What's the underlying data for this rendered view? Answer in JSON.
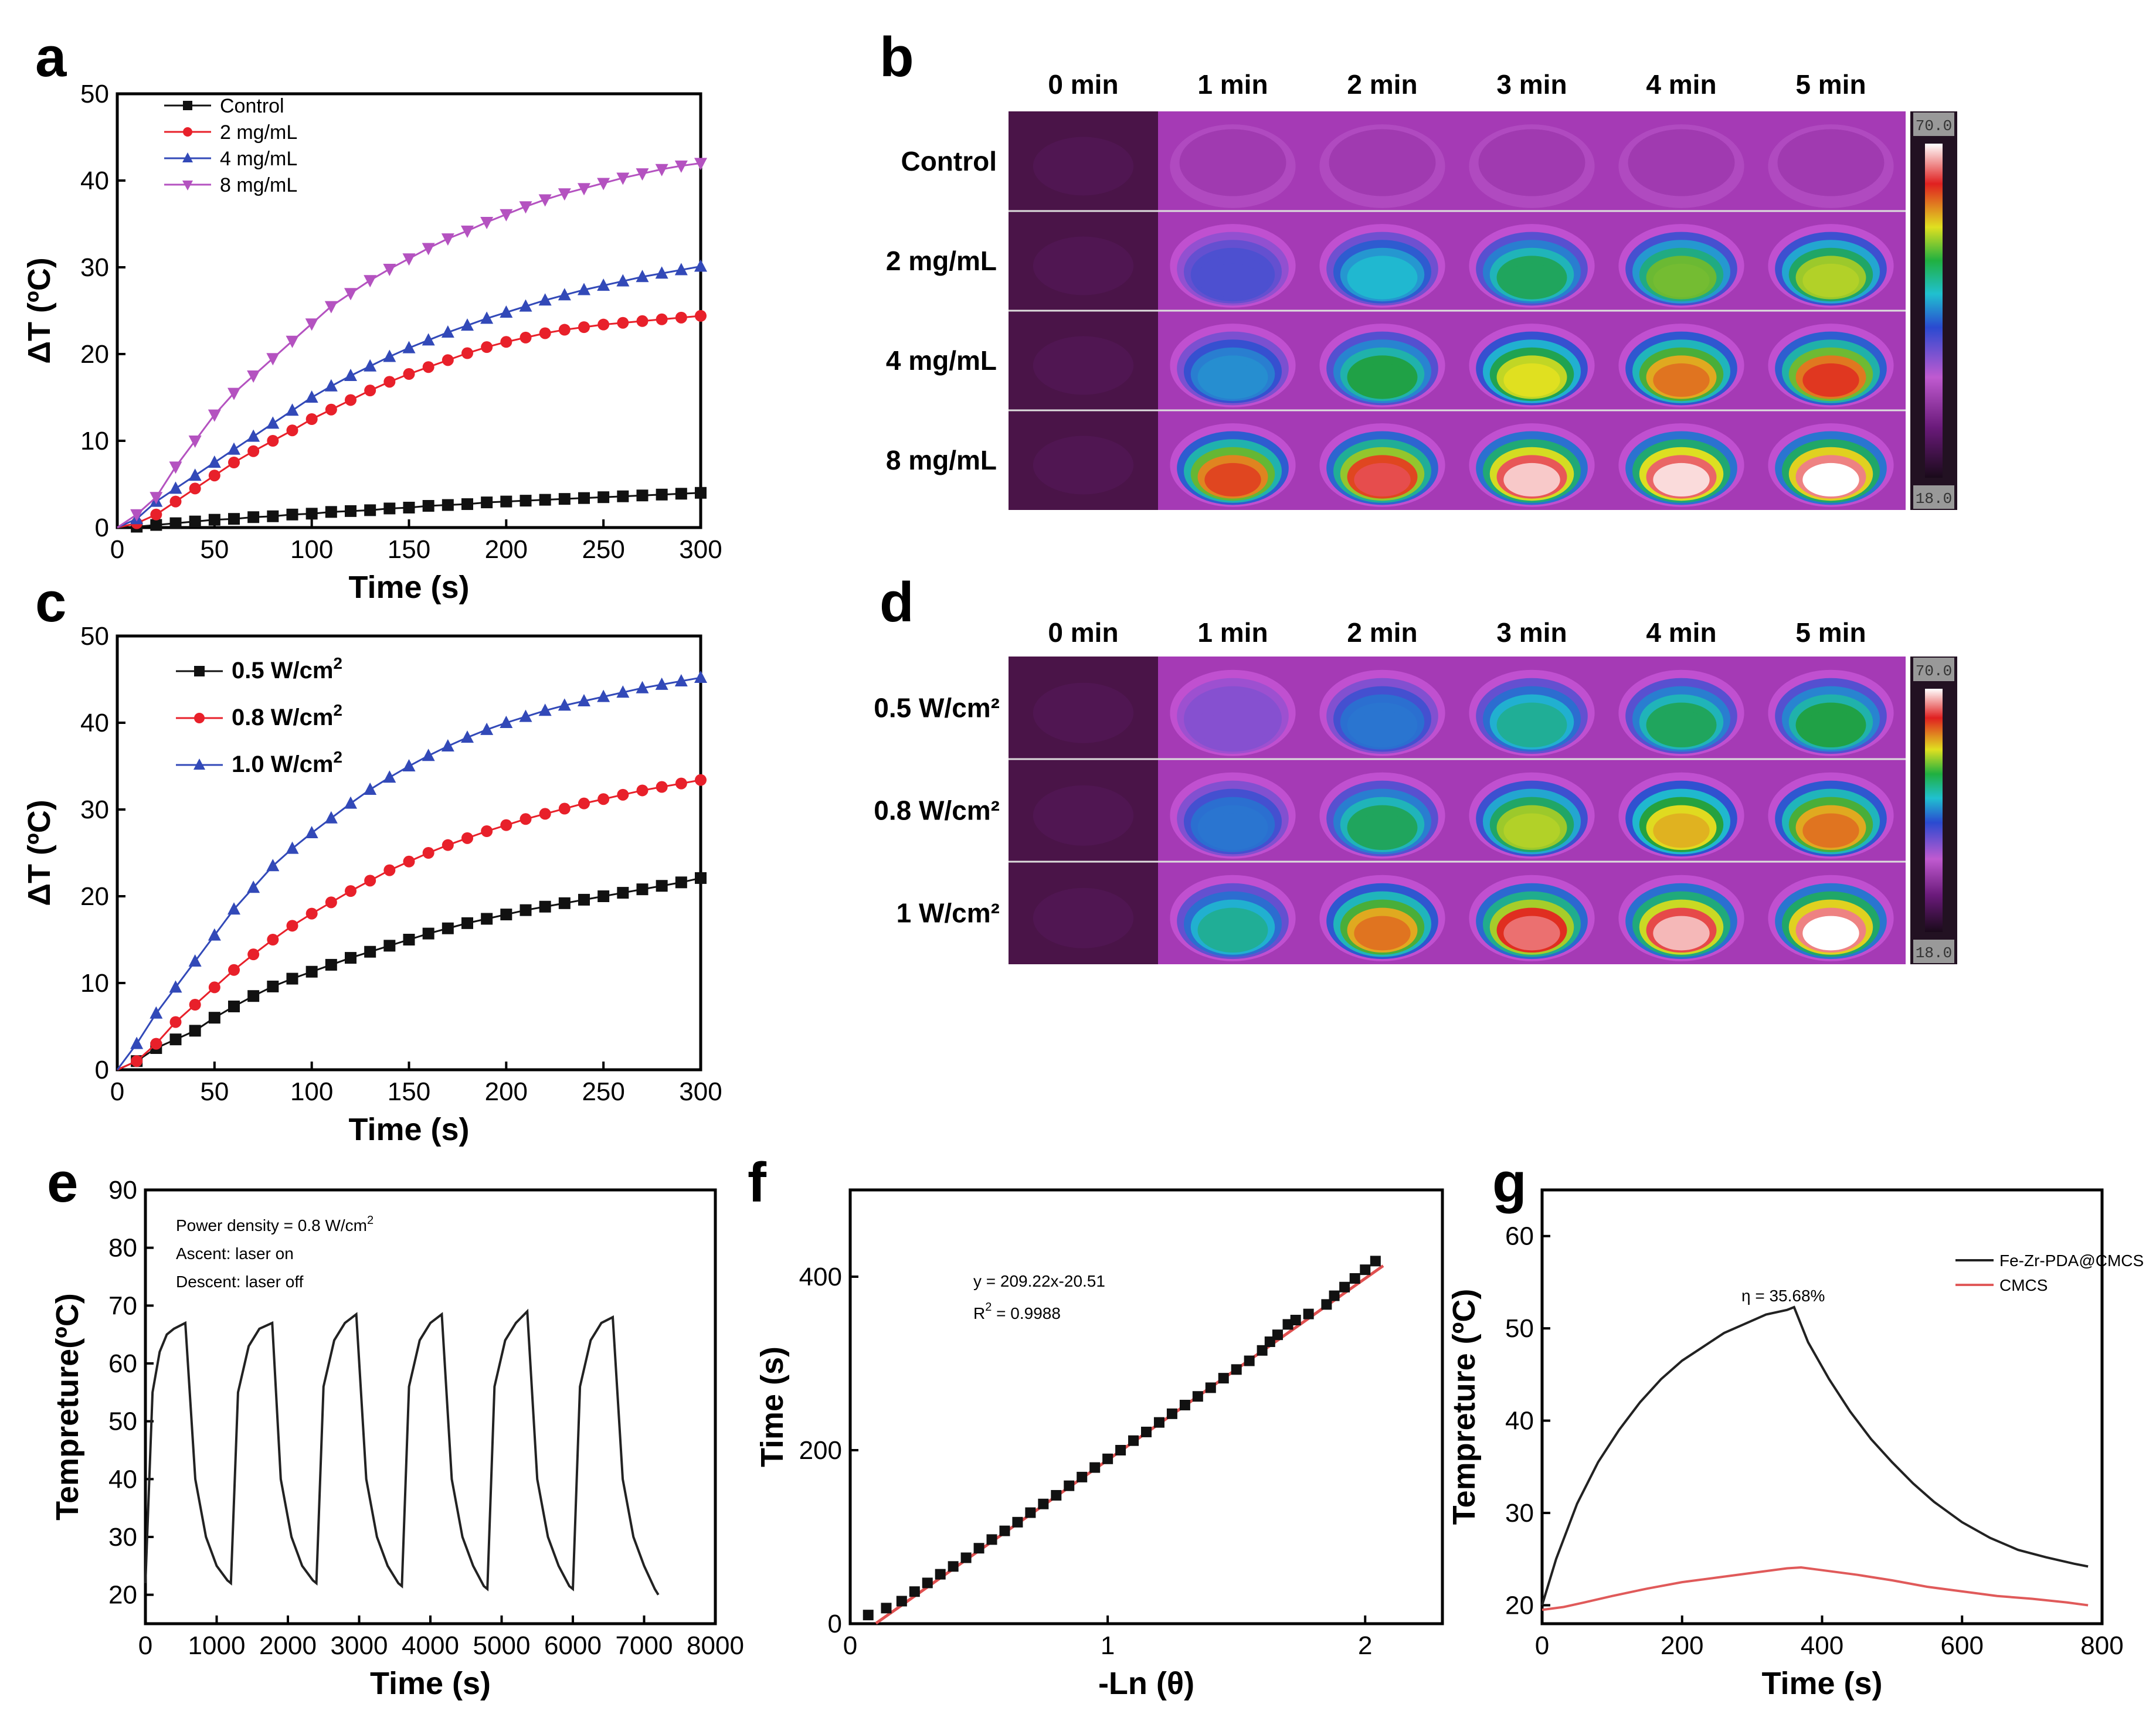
{
  "colors": {
    "black": "#111111",
    "red": "#e8202a",
    "blue": "#3249b8",
    "magenta": "#b452c0",
    "fitRed": "#e05050",
    "g_red": "#e05a5a"
  },
  "chart_data": [
    {
      "id": "a",
      "type": "line",
      "panel_label": "a",
      "xlabel": "Time (s)",
      "ylabel": "ΔT (ºC)",
      "xlim": [
        0,
        300
      ],
      "ylim": [
        0,
        50
      ],
      "xticks": [
        0,
        50,
        100,
        150,
        200,
        250,
        300
      ],
      "yticks": [
        0,
        10,
        20,
        30,
        40,
        50
      ],
      "series": [
        {
          "name": "Control",
          "color": "#111111",
          "marker": "square",
          "x": [
            0,
            10,
            20,
            30,
            40,
            50,
            60,
            70,
            80,
            90,
            100,
            110,
            120,
            130,
            140,
            150,
            160,
            170,
            180,
            190,
            200,
            210,
            220,
            230,
            240,
            250,
            260,
            270,
            280,
            290,
            300
          ],
          "values": [
            0,
            0.1,
            0.3,
            0.5,
            0.7,
            0.9,
            1.0,
            1.2,
            1.3,
            1.5,
            1.6,
            1.8,
            1.9,
            2.0,
            2.2,
            2.3,
            2.5,
            2.6,
            2.7,
            2.9,
            3.0,
            3.1,
            3.2,
            3.3,
            3.4,
            3.5,
            3.6,
            3.7,
            3.8,
            3.9,
            4.0
          ]
        },
        {
          "name": "2 mg/mL",
          "color": "#e8202a",
          "marker": "circle",
          "x": [
            0,
            10,
            20,
            30,
            40,
            50,
            60,
            70,
            80,
            90,
            100,
            110,
            120,
            130,
            140,
            150,
            160,
            170,
            180,
            190,
            200,
            210,
            220,
            230,
            240,
            250,
            260,
            270,
            280,
            290,
            300
          ],
          "values": [
            0,
            0.5,
            1.5,
            3,
            4.5,
            6,
            7.5,
            8.8,
            10,
            11.2,
            12.5,
            13.6,
            14.7,
            15.8,
            16.8,
            17.7,
            18.5,
            19.3,
            20.1,
            20.8,
            21.4,
            21.9,
            22.4,
            22.8,
            23.1,
            23.4,
            23.6,
            23.8,
            24.0,
            24.2,
            24.4
          ]
        },
        {
          "name": "4 mg/mL",
          "color": "#3249b8",
          "marker": "triangle-up",
          "x": [
            0,
            10,
            20,
            30,
            40,
            50,
            60,
            70,
            80,
            90,
            100,
            110,
            120,
            130,
            140,
            150,
            160,
            170,
            180,
            190,
            200,
            210,
            220,
            230,
            240,
            250,
            260,
            270,
            280,
            290,
            300
          ],
          "values": [
            0,
            1,
            3,
            4.5,
            6,
            7.5,
            9,
            10.5,
            12,
            13.5,
            15,
            16.3,
            17.5,
            18.6,
            19.7,
            20.7,
            21.6,
            22.5,
            23.3,
            24.1,
            24.8,
            25.5,
            26.2,
            26.8,
            27.4,
            27.9,
            28.4,
            28.9,
            29.3,
            29.7,
            30.1
          ]
        },
        {
          "name": "8 mg/mL",
          "color": "#b452c0",
          "marker": "triangle-down",
          "x": [
            0,
            10,
            20,
            30,
            40,
            50,
            60,
            70,
            80,
            90,
            100,
            110,
            120,
            130,
            140,
            150,
            160,
            170,
            180,
            190,
            200,
            210,
            220,
            230,
            240,
            250,
            260,
            270,
            280,
            290,
            300
          ],
          "values": [
            0,
            1.5,
            3.5,
            7,
            10,
            13,
            15.5,
            17.5,
            19.5,
            21.5,
            23.5,
            25.5,
            27,
            28.5,
            29.8,
            31,
            32.2,
            33.3,
            34.2,
            35.2,
            36.1,
            37,
            37.8,
            38.5,
            39.1,
            39.7,
            40.3,
            40.8,
            41.3,
            41.7,
            42
          ]
        }
      ]
    },
    {
      "id": "c",
      "type": "line",
      "panel_label": "c",
      "xlabel": "Time (s)",
      "ylabel": "ΔT (ºC)",
      "xlim": [
        0,
        300
      ],
      "ylim": [
        0,
        50
      ],
      "xticks": [
        0,
        50,
        100,
        150,
        200,
        250,
        300
      ],
      "yticks": [
        0,
        10,
        20,
        30,
        40,
        50
      ],
      "series": [
        {
          "name": "0.5 W/cm",
          "sup": "2",
          "color": "#111111",
          "marker": "square",
          "x": [
            0,
            10,
            20,
            30,
            40,
            50,
            60,
            70,
            80,
            90,
            100,
            110,
            120,
            130,
            140,
            150,
            160,
            170,
            180,
            190,
            200,
            210,
            220,
            230,
            240,
            250,
            260,
            270,
            280,
            290,
            300
          ],
          "values": [
            0,
            1,
            2.5,
            3.5,
            4.5,
            6,
            7.3,
            8.5,
            9.6,
            10.5,
            11.3,
            12.1,
            12.9,
            13.6,
            14.3,
            15,
            15.7,
            16.3,
            16.9,
            17.4,
            17.9,
            18.4,
            18.8,
            19.2,
            19.6,
            20,
            20.4,
            20.8,
            21.2,
            21.6,
            22.1
          ]
        },
        {
          "name": "0.8 W/cm",
          "sup": "2",
          "color": "#e8202a",
          "marker": "circle",
          "x": [
            0,
            10,
            20,
            30,
            40,
            50,
            60,
            70,
            80,
            90,
            100,
            110,
            120,
            130,
            140,
            150,
            160,
            170,
            180,
            190,
            200,
            210,
            220,
            230,
            240,
            250,
            260,
            270,
            280,
            290,
            300
          ],
          "values": [
            0,
            1,
            3,
            5.5,
            7.5,
            9.5,
            11.5,
            13.3,
            15,
            16.6,
            18,
            19.3,
            20.6,
            21.8,
            23,
            24,
            25,
            25.9,
            26.7,
            27.5,
            28.2,
            28.9,
            29.5,
            30.1,
            30.7,
            31.2,
            31.7,
            32.2,
            32.6,
            33,
            33.4
          ]
        },
        {
          "name": "1.0 W/cm",
          "sup": "2",
          "color": "#3249b8",
          "marker": "triangle-up",
          "x": [
            0,
            10,
            20,
            30,
            40,
            50,
            60,
            70,
            80,
            90,
            100,
            110,
            120,
            130,
            140,
            150,
            160,
            170,
            180,
            190,
            200,
            210,
            220,
            230,
            240,
            250,
            260,
            270,
            280,
            290,
            300
          ],
          "values": [
            0,
            3,
            6.5,
            9.5,
            12.5,
            15.5,
            18.5,
            21,
            23.5,
            25.5,
            27.3,
            29,
            30.7,
            32.3,
            33.7,
            35,
            36.2,
            37.3,
            38.3,
            39.2,
            40,
            40.7,
            41.4,
            42,
            42.5,
            43,
            43.5,
            44,
            44.4,
            44.8,
            45.2
          ]
        }
      ]
    },
    {
      "id": "e",
      "type": "line",
      "panel_label": "e",
      "xlabel": "Time (s)",
      "ylabel": "Tempreture(ºC)",
      "xlim": [
        0,
        8000
      ],
      "ylim": [
        15,
        90
      ],
      "xticks": [
        0,
        1000,
        2000,
        3000,
        4000,
        5000,
        6000,
        7000,
        8000
      ],
      "yticks": [
        20,
        30,
        40,
        50,
        60,
        70,
        80,
        90
      ],
      "annotations": [
        "Power density = 0.8 W/cm",
        "Ascent: laser on",
        "Descent: laser off"
      ],
      "series": [
        {
          "name": "cycles",
          "color": "#222222",
          "x": [
            0,
            100,
            200,
            300,
            400,
            560,
            700,
            850,
            1000,
            1150,
            1200,
            1300,
            1450,
            1600,
            1780,
            1900,
            2050,
            2200,
            2350,
            2400,
            2500,
            2650,
            2800,
            2960,
            3100,
            3250,
            3400,
            3550,
            3600,
            3700,
            3850,
            4000,
            4160,
            4300,
            4450,
            4600,
            4750,
            4800,
            4900,
            5050,
            5200,
            5360,
            5500,
            5650,
            5800,
            5950,
            6000,
            6100,
            6250,
            6400,
            6560,
            6700,
            6850,
            7000,
            7150,
            7200
          ],
          "values": [
            22,
            55,
            62,
            65,
            66,
            67,
            40,
            30,
            25,
            22.5,
            22,
            55,
            63,
            66,
            67,
            40,
            30,
            25,
            22.5,
            22,
            56,
            64,
            67,
            68.5,
            40,
            30,
            25,
            22,
            21.5,
            56,
            64,
            67,
            68.5,
            40,
            30,
            25,
            21.5,
            21,
            56,
            64,
            67,
            69,
            40,
            30,
            25,
            21.5,
            21,
            56,
            64,
            67,
            68,
            40,
            30,
            25,
            21,
            20
          ]
        }
      ]
    },
    {
      "id": "f",
      "type": "scatter",
      "panel_label": "f",
      "xlabel": "-Ln (θ)",
      "ylabel": "Time (s)",
      "xlim": [
        0,
        2.3
      ],
      "ylim": [
        0,
        500
      ],
      "xticks": [
        0,
        1,
        2
      ],
      "yticks": [
        0,
        200,
        400
      ],
      "annotations": [
        "y = 209.22x-20.51",
        "R",
        "2",
        "= 0.9988"
      ],
      "fit": {
        "slope": 209.22,
        "intercept": -20.51,
        "x0": 0.1,
        "x1": 2.07
      },
      "series": [
        {
          "name": "data",
          "color": "#111111",
          "marker": "square",
          "x": [
            0.07,
            0.14,
            0.2,
            0.25,
            0.3,
            0.35,
            0.4,
            0.45,
            0.5,
            0.55,
            0.6,
            0.65,
            0.7,
            0.75,
            0.8,
            0.85,
            0.9,
            0.95,
            1.0,
            1.05,
            1.1,
            1.15,
            1.2,
            1.25,
            1.3,
            1.35,
            1.4,
            1.45,
            1.5,
            1.55,
            1.6,
            1.63,
            1.66,
            1.7,
            1.73,
            1.78,
            1.85,
            1.88,
            1.92,
            1.96,
            2.0,
            2.04
          ],
          "values": [
            10,
            18,
            26,
            37,
            47,
            57,
            66,
            76,
            87,
            97,
            107,
            117,
            128,
            138,
            148,
            159,
            169,
            180,
            190,
            200,
            211,
            221,
            232,
            242,
            252,
            262,
            272,
            283,
            293,
            303,
            315,
            325,
            333,
            345,
            350,
            357,
            368,
            378,
            388,
            398,
            408,
            418
          ]
        }
      ]
    },
    {
      "id": "g",
      "type": "line",
      "panel_label": "g",
      "xlabel": "Time (s)",
      "ylabel": "Tempreture (ºC)",
      "xlim": [
        0,
        800
      ],
      "ylim": [
        18,
        65
      ],
      "xticks": [
        0,
        200,
        400,
        600,
        800
      ],
      "yticks": [
        20,
        30,
        40,
        50,
        60
      ],
      "annotations": [
        "η = 35.68%"
      ],
      "series": [
        {
          "name": "Fe-Zr-PDA@CMCS",
          "color": "#222222",
          "x": [
            0,
            20,
            50,
            80,
            110,
            140,
            170,
            200,
            230,
            260,
            290,
            320,
            350,
            360,
            380,
            410,
            440,
            470,
            500,
            530,
            560,
            600,
            640,
            680,
            720,
            760,
            780
          ],
          "values": [
            20,
            25,
            31,
            35.5,
            39,
            42,
            44.5,
            46.5,
            48,
            49.5,
            50.5,
            51.5,
            52,
            52.3,
            48.5,
            44.5,
            41,
            38,
            35.5,
            33.2,
            31.2,
            29,
            27.3,
            26,
            25.2,
            24.5,
            24.2
          ]
        },
        {
          "name": "CMCS",
          "color": "#e05a5a",
          "x": [
            0,
            30,
            60,
            100,
            150,
            200,
            250,
            300,
            350,
            370,
            400,
            450,
            500,
            550,
            600,
            650,
            700,
            750,
            780
          ],
          "values": [
            19.5,
            19.8,
            20.3,
            21,
            21.8,
            22.5,
            23,
            23.5,
            24,
            24.1,
            23.8,
            23.3,
            22.7,
            22,
            21.5,
            21,
            20.7,
            20.3,
            20
          ]
        }
      ]
    }
  ],
  "panel_b": {
    "label": "b",
    "times": [
      "0 min",
      "1 min",
      "2 min",
      "3 min",
      "4 min",
      "5 min"
    ],
    "rows": [
      {
        "label": "Control",
        "levels": [
          0,
          0.05,
          0.08,
          0.1,
          0.12,
          0.13
        ]
      },
      {
        "label": "2 mg/mL",
        "levels": [
          0,
          0.35,
          0.5,
          0.6,
          0.68,
          0.72
        ]
      },
      {
        "label": "4 mg/mL",
        "levels": [
          0,
          0.45,
          0.62,
          0.75,
          0.82,
          0.86
        ]
      },
      {
        "label": "8 mg/mL",
        "levels": [
          0,
          0.85,
          0.9,
          0.97,
          0.98,
          1.0
        ]
      }
    ],
    "colorbar": {
      "max": "70.0",
      "min": "18.0"
    }
  },
  "panel_d": {
    "label": "d",
    "times": [
      "0 min",
      "1 min",
      "2 min",
      "3 min",
      "4 min",
      "5 min"
    ],
    "rows": [
      {
        "label": "0.5 W/cm²",
        "levels": [
          0,
          0.3,
          0.42,
          0.55,
          0.6,
          0.62
        ]
      },
      {
        "label": "0.8 W/cm²",
        "levels": [
          0.02,
          0.42,
          0.6,
          0.72,
          0.78,
          0.82
        ]
      },
      {
        "label": "1 W/cm²",
        "levels": [
          0.02,
          0.55,
          0.82,
          0.92,
          0.96,
          1.0
        ]
      }
    ],
    "colorbar": {
      "max": "70.0",
      "min": "18.0"
    }
  }
}
